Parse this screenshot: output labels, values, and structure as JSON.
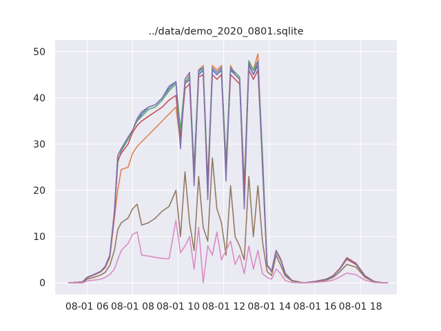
{
  "chart_data": {
    "type": "line",
    "title": "../data/demo_2020_0801.sqlite",
    "xlabel": "",
    "ylabel": "",
    "x_ticks": [
      {
        "hour": 6,
        "label": "08-01 06"
      },
      {
        "hour": 8,
        "label": "08-01 08"
      },
      {
        "hour": 10,
        "label": "08-01 10"
      },
      {
        "hour": 12,
        "label": "08-01 12"
      },
      {
        "hour": 14,
        "label": "08-01 14"
      },
      {
        "hour": 16,
        "label": "08-01 16"
      },
      {
        "hour": 18,
        "label": "08-01 18"
      }
    ],
    "y_ticks": [
      0,
      10,
      20,
      30,
      40,
      50
    ],
    "xlim_hours": [
      4.6,
      19.6
    ],
    "ylim": [
      -2.5,
      52.5
    ],
    "grid": true,
    "background": "#eaeaf2",
    "series": [
      {
        "color": "#4c72b0",
        "x": [
          5.2,
          5.8,
          6.0,
          6.3,
          6.6,
          6.8,
          7.0,
          7.2,
          7.35,
          7.5,
          7.8,
          8.0,
          8.2,
          8.4,
          8.7,
          9.0,
          9.3,
          9.6,
          9.9,
          10.1,
          10.3,
          10.5,
          10.7,
          10.9,
          11.1,
          11.3,
          11.5,
          11.7,
          11.9,
          12.1,
          12.3,
          12.5,
          12.7,
          12.9,
          13.1,
          13.3,
          13.5,
          13.7,
          13.9,
          14.1,
          14.3,
          14.5,
          14.7,
          15.0,
          15.5,
          16.0,
          16.5,
          16.8,
          17.1,
          17.4,
          17.8,
          18.2,
          18.6,
          19.0,
          19.2
        ],
        "y": [
          0,
          0.2,
          1.2,
          1.8,
          2.5,
          3.5,
          6,
          15,
          27.5,
          29,
          31,
          33,
          35,
          36.5,
          38,
          38.5,
          40,
          42,
          43.5,
          32,
          43,
          44,
          24,
          45,
          46,
          21,
          46,
          45,
          46,
          25,
          46,
          45,
          44,
          20,
          47,
          45,
          47,
          27,
          4,
          2.5,
          7,
          5,
          2,
          0.5,
          0,
          0.3,
          0.8,
          1.5,
          3,
          5.3,
          4.2,
          1.5,
          0.3,
          0,
          0
        ]
      },
      {
        "color": "#dd8452",
        "x": [
          5.2,
          5.8,
          6.0,
          6.3,
          6.6,
          6.8,
          7.0,
          7.2,
          7.35,
          7.5,
          7.8,
          8.0,
          8.2,
          8.4,
          8.7,
          9.0,
          9.3,
          9.6,
          9.9,
          10.1,
          10.3,
          10.5,
          10.7,
          10.9,
          11.1,
          11.3,
          11.5,
          11.7,
          11.9,
          12.1,
          12.3,
          12.5,
          12.7,
          12.9,
          13.1,
          13.3,
          13.5,
          13.7,
          13.9,
          14.1,
          14.3,
          14.5,
          14.7,
          15.0,
          15.5,
          16.0,
          16.5,
          16.8,
          17.1,
          17.4,
          17.8,
          18.2,
          18.6,
          19.0,
          19.2
        ],
        "y": [
          0,
          0.2,
          1.1,
          1.7,
          2.4,
          3.3,
          5.5,
          14,
          20,
          24.5,
          25,
          28,
          29.5,
          30.5,
          32,
          33.5,
          35,
          36.5,
          38,
          30,
          43,
          45,
          23,
          46,
          47,
          20,
          47,
          46,
          47,
          24,
          47,
          45,
          44,
          19,
          48,
          46,
          49.5,
          26,
          4,
          2.6,
          7,
          5.2,
          2.1,
          0.5,
          0,
          0.3,
          0.8,
          1.6,
          3.2,
          5.5,
          4.3,
          1.6,
          0.3,
          0,
          0
        ]
      },
      {
        "color": "#55a868",
        "x": [
          5.2,
          5.8,
          6.0,
          6.3,
          6.6,
          6.8,
          7.0,
          7.2,
          7.35,
          7.5,
          7.8,
          8.0,
          8.2,
          8.4,
          8.7,
          9.0,
          9.3,
          9.6,
          9.9,
          10.1,
          10.3,
          10.5,
          10.7,
          10.9,
          11.1,
          11.3,
          11.5,
          11.7,
          11.9,
          12.1,
          12.3,
          12.5,
          12.7,
          12.9,
          13.1,
          13.3,
          13.5,
          13.7,
          13.9,
          14.1,
          14.3,
          14.5,
          14.7,
          15.0,
          15.5,
          16.0,
          16.5,
          16.8,
          17.1,
          17.4,
          17.8,
          18.2,
          18.6,
          19.0,
          19.2
        ],
        "y": [
          0,
          0.2,
          1.2,
          1.8,
          2.5,
          3.5,
          6,
          15,
          26,
          28.5,
          31,
          33,
          35,
          36,
          37.5,
          38,
          39.5,
          41.5,
          43,
          33,
          43.5,
          44.5,
          25,
          45.5,
          46.5,
          22,
          46.5,
          45.5,
          46.5,
          26,
          46.5,
          45.5,
          44.5,
          21,
          48,
          46,
          48,
          28,
          4,
          2.5,
          7,
          5,
          2,
          0.5,
          0,
          0.3,
          0.8,
          1.5,
          3,
          5.3,
          4.2,
          1.5,
          0.3,
          0,
          0
        ]
      },
      {
        "color": "#c44e52",
        "x": [
          5.2,
          5.8,
          6.0,
          6.3,
          6.6,
          6.8,
          7.0,
          7.2,
          7.35,
          7.5,
          7.8,
          8.0,
          8.2,
          8.4,
          8.7,
          9.0,
          9.3,
          9.6,
          9.9,
          10.1,
          10.3,
          10.5,
          10.7,
          10.9,
          11.1,
          11.3,
          11.5,
          11.7,
          11.9,
          12.1,
          12.3,
          12.5,
          12.7,
          12.9,
          13.1,
          13.3,
          13.5,
          13.7,
          13.9,
          14.1,
          14.3,
          14.5,
          14.7,
          15.0,
          15.5,
          16.0,
          16.5,
          16.8,
          17.1,
          17.4,
          17.8,
          18.2,
          18.6,
          19.0,
          19.2
        ],
        "y": [
          0,
          0.2,
          1.1,
          1.7,
          2.4,
          3.4,
          5.8,
          14.5,
          26.5,
          28,
          30,
          32.5,
          34,
          35,
          36,
          37,
          38,
          39.5,
          40.5,
          31,
          42,
          43,
          23,
          44.5,
          45,
          21,
          45,
          44,
          45,
          24,
          45,
          44,
          43,
          20,
          46,
          44,
          46,
          26,
          3.8,
          2.4,
          6.8,
          4.9,
          1.9,
          0.5,
          0,
          0.3,
          0.8,
          1.5,
          3,
          5.1,
          4,
          1.4,
          0.3,
          0,
          0
        ]
      },
      {
        "color": "#8172b3",
        "x": [
          5.2,
          5.8,
          6.0,
          6.3,
          6.6,
          6.8,
          7.0,
          7.2,
          7.35,
          7.5,
          7.8,
          8.0,
          8.2,
          8.4,
          8.7,
          9.0,
          9.3,
          9.6,
          9.9,
          10.1,
          10.3,
          10.5,
          10.7,
          10.9,
          11.1,
          11.3,
          11.5,
          11.7,
          11.9,
          12.1,
          12.3,
          12.5,
          12.7,
          12.9,
          13.1,
          13.3,
          13.5,
          13.7,
          13.9,
          14.1,
          14.3,
          14.5,
          14.7,
          15.0,
          15.5,
          16.0,
          16.5,
          16.8,
          17.1,
          17.4,
          17.8,
          18.2,
          18.6,
          19.0,
          19.2
        ],
        "y": [
          0,
          0.2,
          1.2,
          1.8,
          2.5,
          3.6,
          6,
          15.5,
          27.5,
          29,
          31.5,
          33,
          35.5,
          37,
          38,
          38.5,
          40,
          42.5,
          43.5,
          29,
          44,
          45.5,
          21,
          46,
          46.5,
          18,
          46.5,
          45.5,
          46.5,
          22,
          46.5,
          45,
          44,
          16,
          47.5,
          45,
          48,
          25,
          4,
          2.5,
          7,
          5,
          2,
          0.5,
          0,
          0.3,
          0.8,
          1.5,
          3,
          5.3,
          4.2,
          1.5,
          0.3,
          0,
          0
        ]
      },
      {
        "color": "#937860",
        "x": [
          5.2,
          5.8,
          6.0,
          6.3,
          6.6,
          6.8,
          7.0,
          7.2,
          7.35,
          7.5,
          7.8,
          8.0,
          8.2,
          8.4,
          8.7,
          9.0,
          9.3,
          9.6,
          9.9,
          10.1,
          10.3,
          10.5,
          10.7,
          10.9,
          11.1,
          11.3,
          11.5,
          11.7,
          11.9,
          12.1,
          12.3,
          12.5,
          12.7,
          12.9,
          13.1,
          13.3,
          13.5,
          13.7,
          13.9,
          14.1,
          14.3,
          14.5,
          14.7,
          15.0,
          15.5,
          16.0,
          16.5,
          16.8,
          17.1,
          17.4,
          17.8,
          18.2,
          18.6,
          19.0,
          19.2
        ],
        "y": [
          0,
          0.1,
          0.8,
          1.2,
          1.7,
          2.3,
          3.8,
          7,
          11.5,
          13,
          14,
          16,
          17,
          12.5,
          13,
          14,
          15.5,
          16.5,
          20,
          10,
          24,
          13,
          7,
          23,
          12,
          9,
          27,
          16,
          13,
          6,
          21,
          10,
          8,
          5,
          23,
          10,
          21,
          9,
          2.5,
          1.6,
          6,
          3.8,
          1.5,
          0.4,
          0,
          0.2,
          0.6,
          1.2,
          2.4,
          4,
          3.4,
          1.2,
          0.2,
          0,
          0
        ]
      },
      {
        "color": "#da8bc3",
        "x": [
          5.2,
          5.8,
          6.0,
          6.3,
          6.6,
          6.8,
          7.0,
          7.2,
          7.35,
          7.5,
          7.8,
          8.0,
          8.2,
          8.4,
          8.7,
          9.0,
          9.3,
          9.6,
          9.9,
          10.1,
          10.3,
          10.5,
          10.7,
          10.9,
          11.1,
          11.3,
          11.5,
          11.7,
          11.9,
          12.1,
          12.3,
          12.5,
          12.7,
          12.9,
          13.1,
          13.3,
          13.5,
          13.7,
          13.9,
          14.1,
          14.3,
          14.5,
          14.7,
          15.0,
          15.5,
          16.0,
          16.5,
          16.8,
          17.1,
          17.4,
          17.8,
          18.2,
          18.6,
          19.0,
          19.2
        ],
        "y": [
          0,
          0,
          0.4,
          0.6,
          0.8,
          1.2,
          1.8,
          3,
          5,
          7,
          8.5,
          10.5,
          11,
          6,
          5.8,
          5.5,
          5.3,
          5.2,
          13.5,
          6.5,
          8,
          10,
          3,
          12,
          0,
          8,
          6,
          11,
          5,
          7,
          9,
          4,
          6,
          2,
          8,
          3,
          7,
          2,
          1.2,
          0.8,
          3,
          2,
          0.5,
          0.1,
          0,
          0.1,
          0.3,
          0.6,
          1.3,
          2.1,
          1.8,
          0.6,
          0.1,
          0,
          0
        ]
      }
    ]
  }
}
